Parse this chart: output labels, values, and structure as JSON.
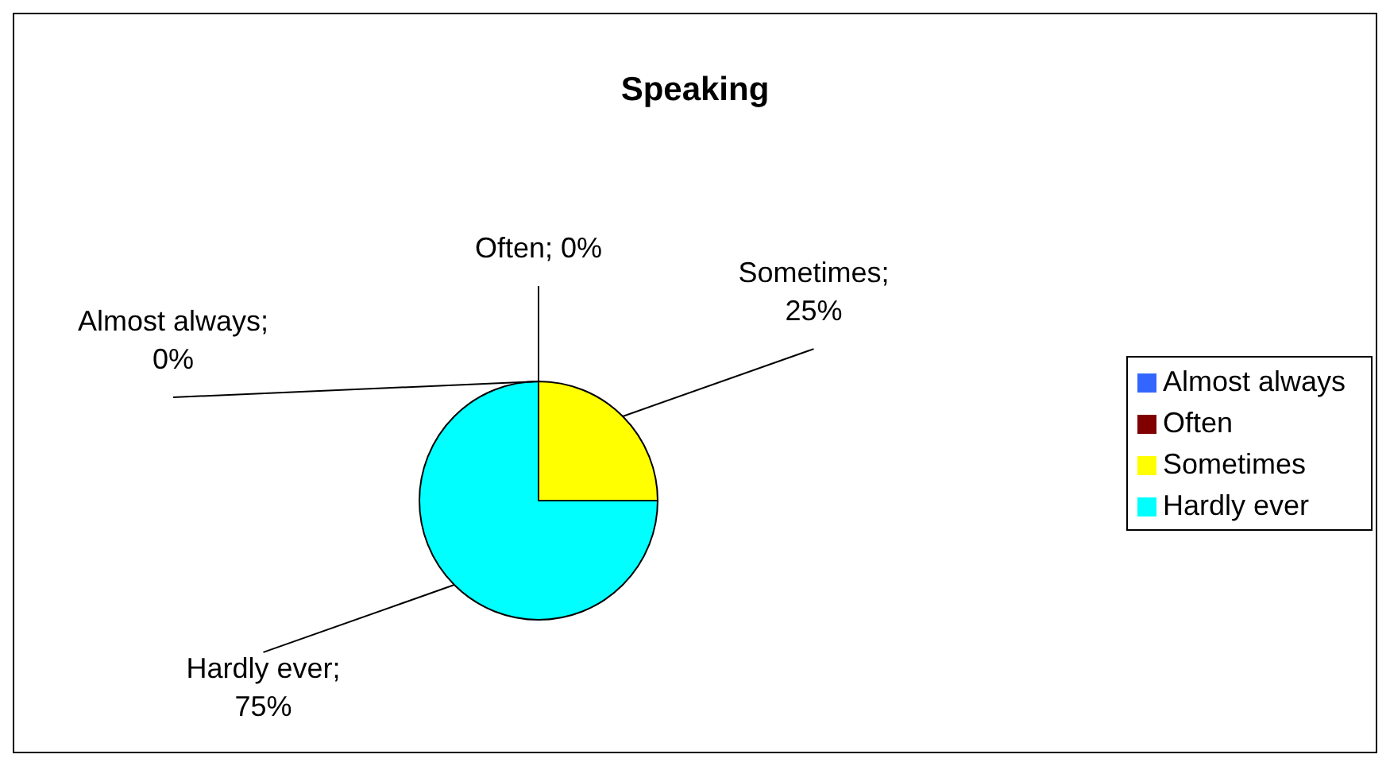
{
  "chart_data": {
    "type": "pie",
    "title": "Speaking",
    "categories": [
      "Almost always",
      "Often",
      "Sometimes",
      "Hardly ever"
    ],
    "values": [
      0,
      0,
      25,
      75
    ],
    "value_labels": [
      "Almost always; 0%",
      "Often; 0%",
      "Sometimes; 25%",
      "Hardly ever; 75%"
    ],
    "colors": [
      "#3366ff",
      "#800000",
      "#ffff00",
      "#00ffff"
    ],
    "legend": "right"
  }
}
